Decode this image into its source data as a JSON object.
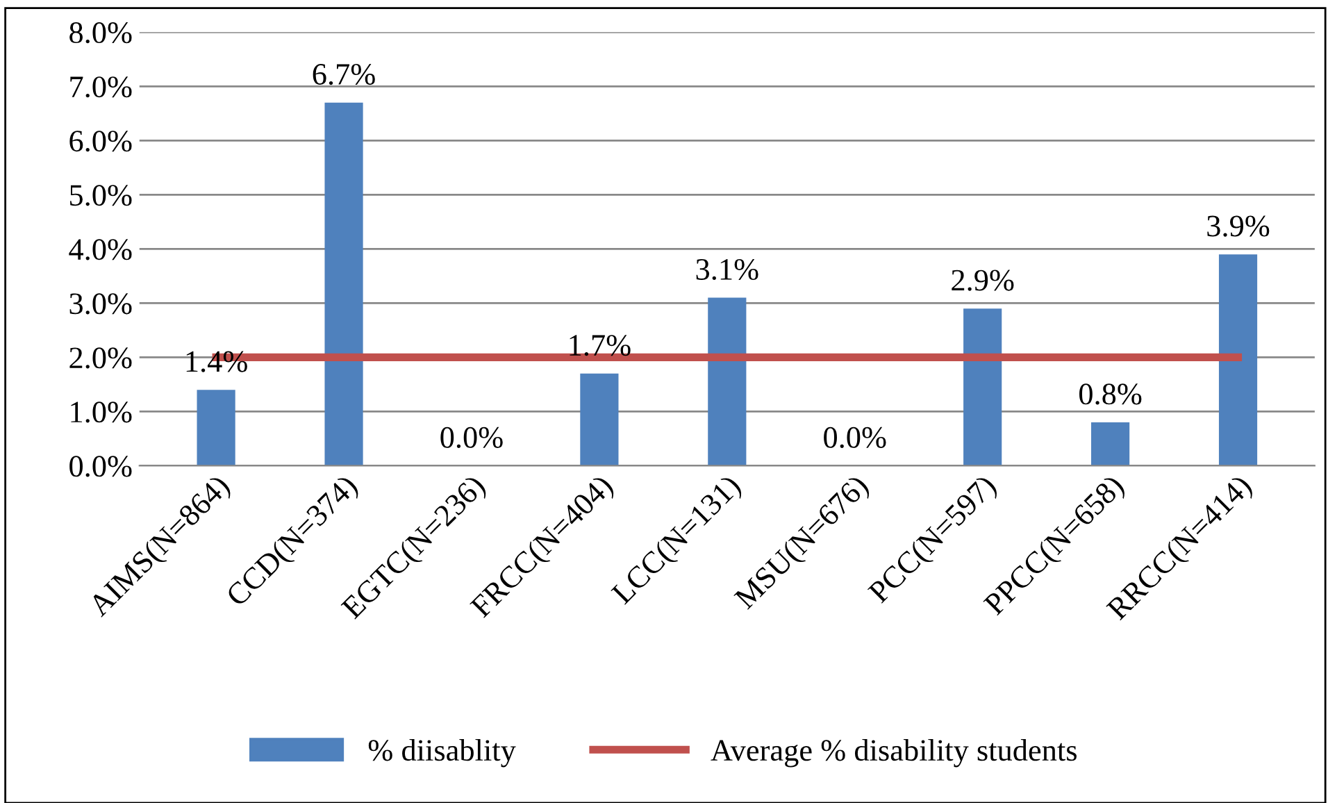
{
  "chart_data": {
    "type": "bar",
    "categories": [
      "AIMS(N=864)",
      "CCD(N=374)",
      "EGTC(N=236)",
      "FRCC(N=404)",
      "LCC(N=131)",
      "MSU(N=676)",
      "PCC(N=597)",
      "PPCC(N=658)",
      "RRCC(N=414)"
    ],
    "series": [
      {
        "name": "% diisablity",
        "color": "#4f81bd",
        "values": [
          1.4,
          6.7,
          0.0,
          1.7,
          3.1,
          0.0,
          2.9,
          0.8,
          3.9
        ],
        "value_labels": [
          "1.4%",
          "6.7%",
          "0.0%",
          "1.7%",
          "3.1%",
          "0.0%",
          "2.9%",
          "0.8%",
          "3.9%"
        ]
      },
      {
        "name": "Average % disability students",
        "type": "line",
        "color": "#c0504d",
        "values": [
          2.0,
          2.0,
          2.0,
          2.0,
          2.0,
          2.0,
          2.0,
          2.0,
          2.0
        ]
      }
    ],
    "ylim": [
      0,
      8
    ],
    "yticks": [
      {
        "value": 0,
        "label": "0.0%"
      },
      {
        "value": 1,
        "label": "1.0%"
      },
      {
        "value": 2,
        "label": "2.0%"
      },
      {
        "value": 3,
        "label": "3.0%"
      },
      {
        "value": 4,
        "label": "4.0%"
      },
      {
        "value": 5,
        "label": "5.0%"
      },
      {
        "value": 6,
        "label": "6.0%"
      },
      {
        "value": 7,
        "label": "7.0%"
      },
      {
        "value": 8,
        "label": "8.0%"
      }
    ],
    "grid": "y",
    "legend": "bottom",
    "marker": "none",
    "line_style": "solid"
  }
}
